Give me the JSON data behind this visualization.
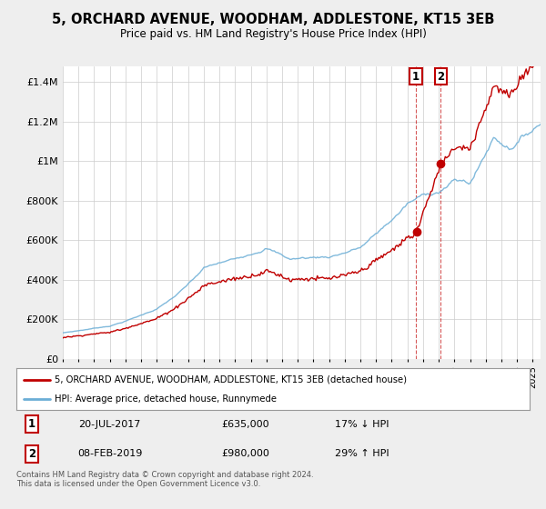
{
  "title": "5, ORCHARD AVENUE, WOODHAM, ADDLESTONE, KT15 3EB",
  "subtitle": "Price paid vs. HM Land Registry's House Price Index (HPI)",
  "ylabel_ticks": [
    "£0",
    "£200K",
    "£400K",
    "£600K",
    "£800K",
    "£1M",
    "£1.2M",
    "£1.4M"
  ],
  "ytick_values": [
    0,
    200000,
    400000,
    600000,
    800000,
    1000000,
    1200000,
    1400000
  ],
  "ylim": [
    0,
    1480000
  ],
  "xlim_start": 1995.0,
  "xlim_end": 2025.5,
  "hpi_color": "#6baed6",
  "price_color": "#c00000",
  "sale1_date": "20-JUL-2017",
  "sale1_price": 635000,
  "sale1_hpi_diff": "17% ↓ HPI",
  "sale1_x": 2017.55,
  "sale2_date": "08-FEB-2019",
  "sale2_price": 980000,
  "sale2_hpi_diff": "29% ↑ HPI",
  "sale2_x": 2019.12,
  "legend_label1": "5, ORCHARD AVENUE, WOODHAM, ADDLESTONE, KT15 3EB (detached house)",
  "legend_label2": "HPI: Average price, detached house, Runnymede",
  "footnote": "Contains HM Land Registry data © Crown copyright and database right 2024.\nThis data is licensed under the Open Government Licence v3.0.",
  "background_color": "#eeeeee",
  "plot_background": "#ffffff",
  "grid_color": "#cccccc",
  "annotation_box_color": "#c00000"
}
